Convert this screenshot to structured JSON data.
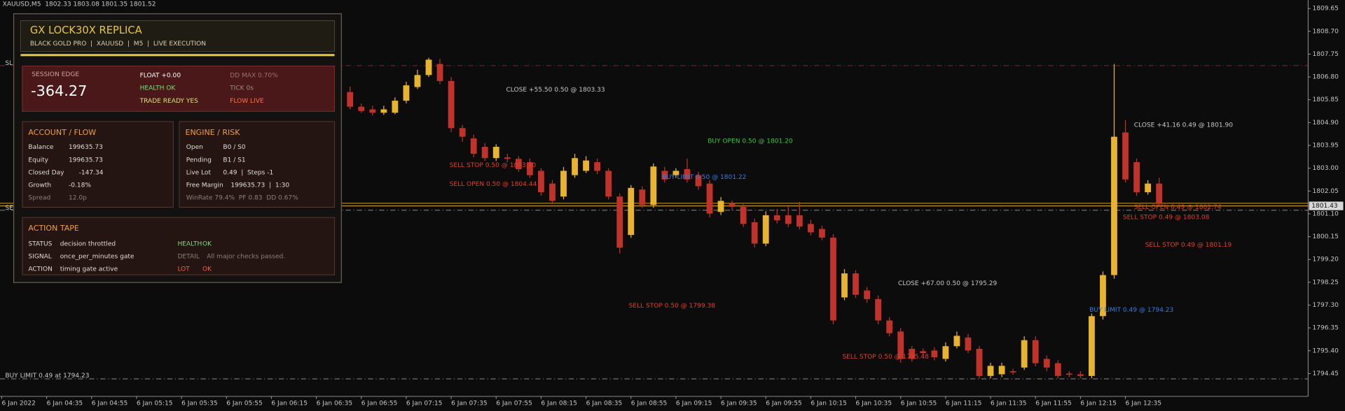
{
  "chart_data": {
    "type": "candlestick",
    "symbol_info": "XAUUSD,M5  1802.33 1803.08 1801.35 1801.52",
    "categories": [
      "6 Jan 2022",
      null,
      null,
      null,
      "6 Jan 04:35",
      null,
      null,
      null,
      "6 Jan 04:55",
      null,
      null,
      null,
      "6 Jan 05:15",
      null,
      null,
      null,
      "6 Jan 05:35",
      null,
      null,
      null,
      "6 Jan 05:55",
      null,
      null,
      null,
      "6 Jan 06:15",
      null,
      null,
      null,
      "6 Jan 06:35",
      null,
      null,
      null,
      "6 Jan 06:55",
      null,
      null,
      null,
      "6 Jan 07:15",
      null,
      null,
      null,
      "6 Jan 07:35",
      null,
      null,
      null,
      "6 Jan 07:55",
      null,
      null,
      null,
      "6 Jan 08:15",
      null,
      null,
      null,
      "6 Jan 08:35",
      null,
      null,
      null,
      "6 Jan 08:55",
      null,
      null,
      null,
      "6 Jan 09:15",
      null,
      null,
      null,
      "6 Jan 09:35",
      null,
      null,
      null,
      "6 Jan 09:55",
      null,
      null,
      null,
      "6 Jan 10:15",
      null,
      null,
      null,
      "6 Jan 10:35",
      null,
      null,
      null,
      "6 Jan 10:55",
      null,
      null,
      null,
      "6 Jan 11:15",
      null,
      null,
      null,
      "6 Jan 11:35",
      null,
      null,
      null,
      "6 Jan 11:55",
      null,
      null,
      null,
      "6 Jan 12:15",
      null,
      null,
      null,
      "6 Jan 12:35",
      null,
      null,
      null
    ],
    "open": [
      null,
      null,
      null,
      null,
      null,
      null,
      null,
      null,
      null,
      null,
      null,
      null,
      null,
      null,
      null,
      null,
      null,
      null,
      null,
      null,
      null,
      null,
      null,
      null,
      null,
      null,
      null,
      null,
      null,
      null,
      null,
      1806.17,
      1805.56,
      1805.45,
      1805.31,
      1805.31,
      1805.81,
      1806.38,
      1806.88,
      1807.34,
      1806.63,
      1804.67,
      1804.24,
      1803.89,
      1803.42,
      1803.45,
      1803.39,
      1803.25,
      1802.89,
      1802.36,
      1801.82,
      1802.71,
      1802.89,
      1803.25,
      1802.89,
      1801.82,
      1800.22,
      1802.11,
      1801.47,
      1802.89,
      1802.71,
      1802.96,
      1802.71,
      1802.36,
      1801.18,
      1801.54,
      1801.39,
      1800.75,
      1799.86,
      1801.04,
      1801.04,
      1801.04,
      1800.68,
      1800.47,
      1800.11,
      1797.62,
      1798.62,
      1797.91,
      1797.55,
      1796.66,
      1796.2,
      1795.48,
      1795.38,
      1795.41,
      1795.06,
      1795.59,
      1795.95,
      1795.48,
      1794.35,
      1794.42,
      1794.55,
      1794.7,
      1795.84,
      1795.06,
      1794.88,
      1794.45,
      1794.42,
      1794.35,
      1796.84,
      1798.55,
      1804.49,
      1803.25,
      1802.0,
      1802.36
    ],
    "high": [
      null,
      null,
      null,
      null,
      null,
      null,
      null,
      null,
      null,
      null,
      null,
      null,
      null,
      null,
      null,
      null,
      null,
      null,
      null,
      null,
      null,
      null,
      null,
      null,
      null,
      null,
      null,
      null,
      null,
      null,
      null,
      1806.4,
      1805.7,
      1805.6,
      1805.6,
      1805.95,
      1806.6,
      1807.1,
      1807.6,
      1807.55,
      1806.8,
      1804.8,
      1804.4,
      1804.05,
      1804.0,
      1803.6,
      1803.5,
      1803.4,
      1803.0,
      1802.5,
      1803.05,
      1803.6,
      1803.5,
      1803.4,
      1803.0,
      1801.95,
      1802.3,
      1802.25,
      1803.2,
      1803.05,
      1803.0,
      1803.4,
      1802.85,
      1802.5,
      1801.8,
      1801.65,
      1801.5,
      1800.9,
      1801.2,
      1801.3,
      1801.4,
      1801.6,
      1800.85,
      1800.6,
      1800.25,
      1798.8,
      1798.75,
      1798.05,
      1797.7,
      1796.8,
      1796.35,
      1795.6,
      1795.5,
      1795.55,
      1795.75,
      1796.2,
      1796.1,
      1795.6,
      1794.9,
      1794.9,
      1794.65,
      1796.0,
      1796.0,
      1795.2,
      1795.0,
      1794.55,
      1794.55,
      1796.95,
      1798.7,
      1807.34,
      1805.0,
      1803.4,
      1802.5,
      1802.6
    ],
    "low": [
      null,
      null,
      null,
      null,
      null,
      null,
      null,
      null,
      null,
      null,
      null,
      null,
      null,
      null,
      null,
      null,
      null,
      null,
      null,
      null,
      null,
      null,
      null,
      null,
      null,
      null,
      null,
      null,
      null,
      null,
      null,
      1805.45,
      1805.3,
      1805.2,
      1805.22,
      1805.25,
      1805.7,
      1806.3,
      1806.8,
      1806.5,
      1804.5,
      1804.1,
      1803.45,
      1803.3,
      1803.3,
      1803.25,
      1802.85,
      1802.6,
      1801.85,
      1801.5,
      1801.7,
      1802.6,
      1802.8,
      1802.75,
      1801.7,
      1799.45,
      1800.1,
      1801.35,
      1801.35,
      1802.4,
      1802.6,
      1802.4,
      1802.1,
      1800.95,
      1801.05,
      1801.25,
      1800.55,
      1799.7,
      1799.75,
      1800.7,
      1800.55,
      1800.45,
      1800.2,
      1800.0,
      1796.5,
      1797.5,
      1797.6,
      1797.4,
      1796.5,
      1796.0,
      1794.9,
      1794.95,
      1795.2,
      1795.0,
      1794.95,
      1795.5,
      1795.3,
      1794.25,
      1794.25,
      1794.3,
      1794.4,
      1794.6,
      1794.75,
      1794.55,
      1794.25,
      1794.3,
      1794.25,
      1794.25,
      1796.7,
      1798.4,
      1802.4,
      1801.85,
      1801.9,
      1801.43
    ],
    "close": [
      null,
      null,
      null,
      null,
      null,
      null,
      null,
      null,
      null,
      null,
      null,
      null,
      null,
      null,
      null,
      null,
      null,
      null,
      null,
      null,
      null,
      null,
      null,
      null,
      null,
      null,
      null,
      null,
      null,
      null,
      null,
      1805.56,
      1805.38,
      1805.31,
      1805.45,
      1805.81,
      1806.45,
      1806.88,
      1807.52,
      1806.63,
      1804.67,
      1804.31,
      1803.6,
      1803.42,
      1803.89,
      1803.39,
      1802.96,
      1802.71,
      1802.0,
      1801.64,
      1802.89,
      1803.42,
      1803.32,
      1802.89,
      1801.82,
      1799.69,
      1802.18,
      1801.47,
      1803.07,
      1802.53,
      1802.89,
      1802.53,
      1802.25,
      1801.11,
      1801.64,
      1801.39,
      1800.68,
      1799.86,
      1801.04,
      1800.83,
      1800.68,
      1800.57,
      1800.33,
      1800.11,
      1796.66,
      1798.62,
      1797.73,
      1797.55,
      1796.66,
      1796.13,
      1795.06,
      1795.06,
      1795.3,
      1795.13,
      1795.59,
      1796.02,
      1795.41,
      1794.35,
      1794.77,
      1794.77,
      1794.5,
      1795.84,
      1794.88,
      1794.7,
      1794.35,
      1794.4,
      1794.35,
      1796.84,
      1798.55,
      1804.31,
      1802.53,
      1802.0,
      1802.36,
      1801.54
    ],
    "up_color": "#e8b430",
    "down_color": "#c0322a",
    "ylim": [
      1793.5,
      1810.0
    ],
    "yticks": [
      1794.45,
      {
        "value": 1795.4,
        "label": "1795.40"
      },
      1796.35,
      {
        "value": 1797.3,
        "label": "1797.30"
      },
      1798.25,
      {
        "value": 1799.2,
        "label": "1799.20"
      },
      1800.15,
      {
        "value": 1801.1,
        "label": "1801.10"
      },
      1802.05,
      {
        "value": 1803,
        "label": "1803.00"
      },
      1803.95,
      {
        "value": 1804.9,
        "label": "1804.90"
      },
      1805.85,
      {
        "value": 1806.8,
        "label": "1806.80"
      },
      1807.75,
      {
        "value": 1808.7,
        "label": "1808.70"
      },
      1809.65
    ],
    "current_price": 1801.43,
    "levels": [
      {
        "value": 1807.27,
        "color": "#7a2a2a",
        "dash": true
      },
      {
        "value": 1801.54,
        "color": "#e8b430",
        "dash": false
      },
      {
        "value": 1801.43,
        "color": "#e8b430",
        "dash": false
      },
      {
        "value": 1801.25,
        "color": "#8a8a8a",
        "dash": true
      },
      {
        "value": 1794.23,
        "color": "#8a8a8a",
        "dash": true
      }
    ],
    "annotations": [
      {
        "text": "CLOSE +55.50 0.50 @ 1803.33",
        "color": "#c8c8c8"
      },
      {
        "text": "BUY OPEN 0.50 @ 1801.20",
        "color": "#3ec43e"
      },
      {
        "text": "SELL STOP 0.50 @ 1803.30",
        "color": "#e0402a"
      },
      {
        "text": "SELL OPEN 0.50 @ 1804.44",
        "color": "#e0402a"
      },
      {
        "text": "BUY LIMIT 0.50 @ 1801.22",
        "color": "#3a7be0"
      },
      {
        "text": "SELL STOP 0.50 @ 1799.38",
        "color": "#e0402a"
      },
      {
        "text": "CLOSE +67.00 0.50 @ 1795.29",
        "color": "#c8c8c8"
      },
      {
        "text": "SELL STOP 0.50 @ 1795.48",
        "color": "#e0402a"
      },
      {
        "text": "CLOSE +41.16 0.49 @ 1801.90",
        "color": "#c8c8c8"
      },
      {
        "text": "SELL OPEN 0.49 @ 1802.74",
        "color": "#e0402a"
      },
      {
        "text": "SELL STOP 0.49 @ 1803.08",
        "color": "#e0402a"
      },
      {
        "text": "SELL STOP 0.49 @ 1801.19",
        "color": "#e0402a"
      },
      {
        "text": "BUY LIMIT 0.49 @ 1794.23",
        "color": "#3a7be0"
      },
      {
        "text": "BUY LIMIT 0.49 at 1794.23",
        "color": "#c8c8c8"
      },
      {
        "text": "SL",
        "color": "#c8c8c8"
      },
      {
        "text": "SE",
        "color": "#c8c8c8"
      }
    ],
    "grid": false
  },
  "panel": {
    "title": "GX LOCK30X REPLICA",
    "subtitle": "BLACK GOLD PRO  |  XAUUSD  |  M5  |  LIVE EXECUTION",
    "session": {
      "label": "SESSION EDGE",
      "value": "-364.27",
      "float": "FLOAT +0.00",
      "health": "HEALTH OK",
      "trade_ready": "TRADE READY YES",
      "dd_max": "DD MAX 0.70%",
      "tick": "TICK 0s",
      "flow": "FLOW LIVE"
    },
    "account": {
      "title": "ACCOUNT / FLOW",
      "rows": [
        [
          "Balance",
          "199635.73"
        ],
        [
          "Equity",
          "199635.73"
        ],
        [
          "Closed Day",
          "-147.34"
        ],
        [
          "Growth",
          "-0.18%"
        ],
        [
          "Spread",
          "12.0p"
        ]
      ]
    },
    "engine": {
      "title": "ENGINE / RISK",
      "rows": [
        [
          "Open",
          "B0 / S0"
        ],
        [
          "Pending",
          "B1 / S1"
        ],
        [
          "Live Lot",
          "0.49  |  Steps -1"
        ],
        [
          "Free Margin",
          "199635.73  |  1:30"
        ]
      ],
      "stats": "WinRate 79.4%  PF 0.83  DD 0.67%"
    },
    "action": {
      "title": "ACTION TAPE",
      "rows": [
        [
          "STATUS",
          "decision throttled",
          "HEALTH",
          "OK"
        ],
        [
          "SIGNAL",
          "once_per_minutes gate",
          "DETAIL",
          "All major checks passed."
        ],
        [
          "ACTION",
          "timing gate active",
          "LOT",
          "OK"
        ]
      ]
    }
  }
}
